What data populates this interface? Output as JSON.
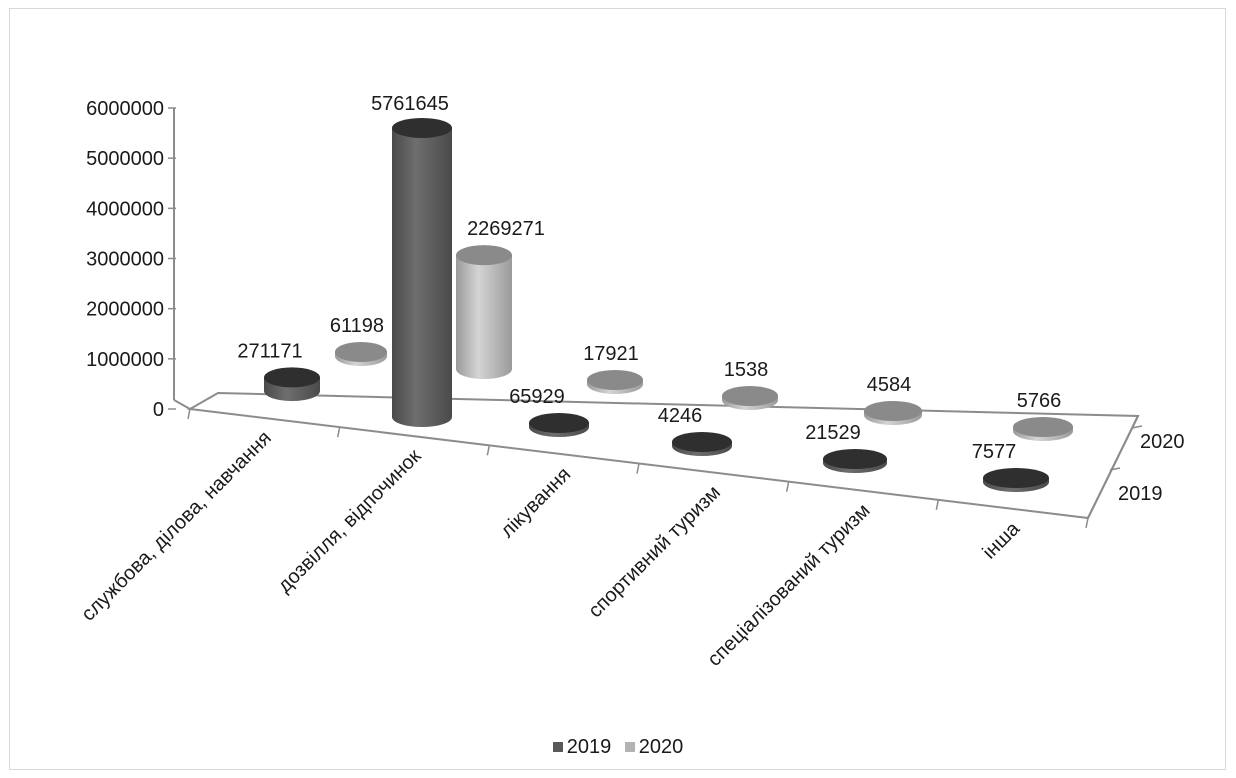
{
  "chart_data": {
    "type": "bar",
    "style": "3d-cylinder",
    "categories": [
      "службова, ділова, навчання",
      "дозвілля, відпочинок",
      "лікування",
      "спортивний туризм",
      "спеціалізований туризм",
      "інша"
    ],
    "series": [
      {
        "name": "2019",
        "values": [
          271171,
          5761645,
          65929,
          4246,
          21529,
          7577
        ],
        "color": "#595959"
      },
      {
        "name": "2020",
        "values": [
          61198,
          2269271,
          17921,
          1538,
          4584,
          5766
        ],
        "color": "#b3b3b3"
      }
    ],
    "data_labels": {
      "2019": [
        "271171",
        "5761645",
        "65929",
        "4246",
        "21529",
        "7577"
      ],
      "2020": [
        "61198",
        "2269271",
        "17921",
        "1538",
        "4584",
        "5766"
      ]
    },
    "y_ticks": [
      "0",
      "1000000",
      "2000000",
      "3000000",
      "4000000",
      "5000000",
      "6000000"
    ],
    "depth_labels": [
      "2019",
      "2020"
    ],
    "ylim": [
      0,
      6000000
    ],
    "legend_position": "bottom",
    "grid": false
  }
}
